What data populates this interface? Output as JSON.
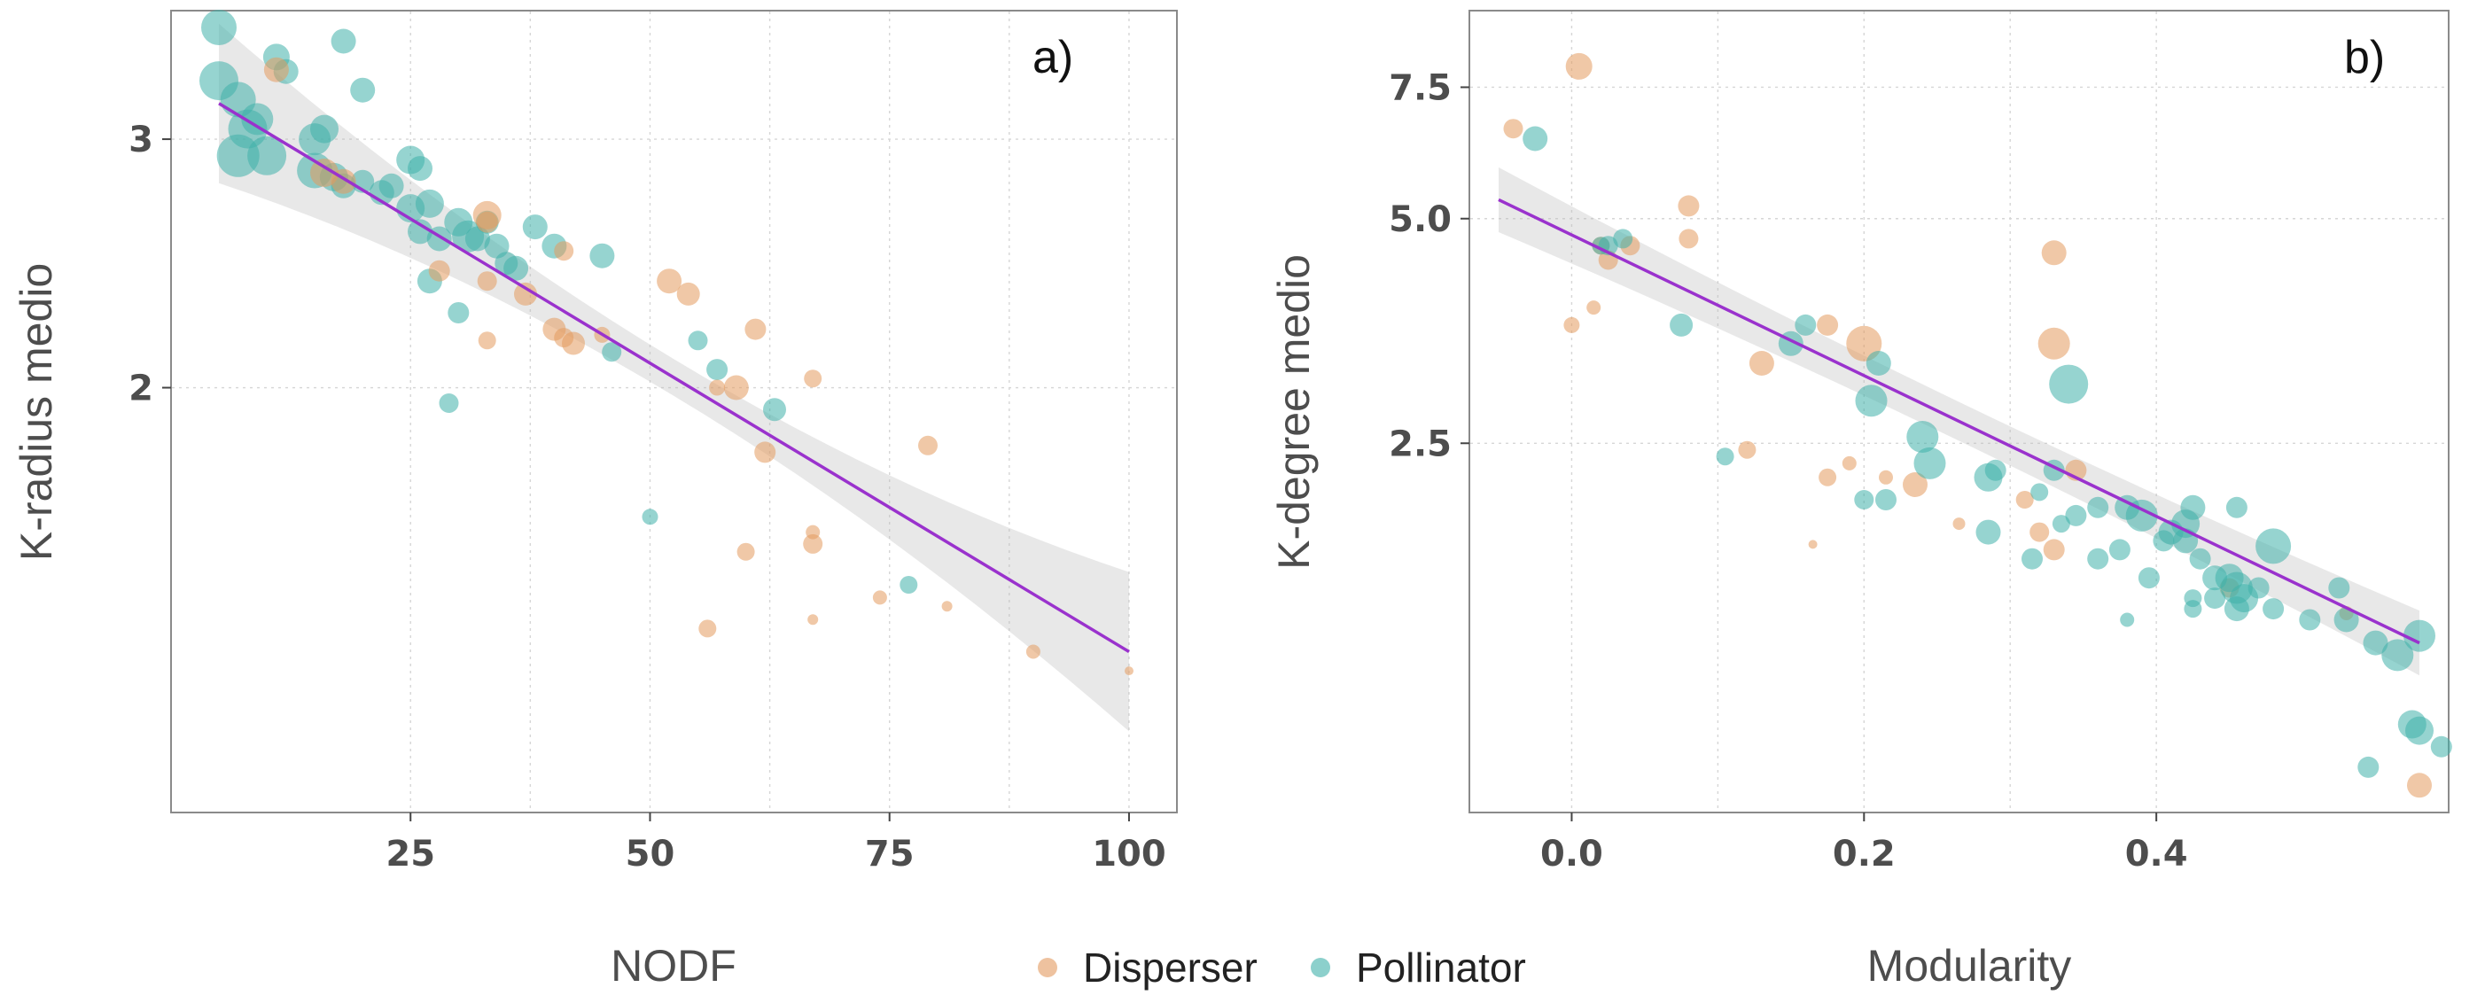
{
  "colors": {
    "disperser": "#E39A5F",
    "pollinator": "#3FB1AA",
    "fit": "#9A32CD",
    "band": "#BDBDBD"
  },
  "legend": {
    "items": [
      {
        "key": "disperser",
        "label": "Disperser"
      },
      {
        "key": "pollinator",
        "label": "Pollinator"
      }
    ],
    "placement": "bottom-center"
  },
  "chart_data": [
    {
      "type": "scatter",
      "panel_label": "a)",
      "xlabel": "NODF",
      "ylabel": "K-radius medio",
      "xlim": [
        0,
        105
      ],
      "ylim": [
        1.0,
        3.7
      ],
      "y_scale": "log",
      "grid": true,
      "xticks": [
        25,
        50,
        75,
        100
      ],
      "xtick_labels": [
        "25",
        "50",
        "75",
        "100"
      ],
      "yticks": [
        2,
        3
      ],
      "ytick_labels": [
        "2",
        "3"
      ],
      "fit": {
        "x": [
          5,
          100
        ],
        "y": [
          3.18,
          1.3
        ],
        "band": [
          0.03,
          0.13
        ]
      },
      "series": [
        {
          "name": "Pollinator",
          "key": "pollinator",
          "points": [
            [
              5,
              3.6,
              20
            ],
            [
              5,
              3.3,
              22
            ],
            [
              7,
              3.2,
              20
            ],
            [
              8,
              3.05,
              22
            ],
            [
              9,
              3.1,
              18
            ],
            [
              7,
              2.92,
              24
            ],
            [
              10,
              2.92,
              22
            ],
            [
              11,
              3.43,
              15
            ],
            [
              12,
              3.35,
              14
            ],
            [
              18,
              3.52,
              14
            ],
            [
              20,
              3.25,
              14
            ],
            [
              15,
              3.0,
              18
            ],
            [
              16,
              3.05,
              16
            ],
            [
              15,
              2.85,
              20
            ],
            [
              17,
              2.82,
              16
            ],
            [
              18,
              2.78,
              14
            ],
            [
              20,
              2.8,
              13
            ],
            [
              22,
              2.75,
              14
            ],
            [
              23,
              2.78,
              14
            ],
            [
              25,
              2.9,
              16
            ],
            [
              26,
              2.86,
              14
            ],
            [
              25,
              2.68,
              16
            ],
            [
              27,
              2.7,
              16
            ],
            [
              26,
              2.58,
              14
            ],
            [
              28,
              2.55,
              14
            ],
            [
              30,
              2.62,
              16
            ],
            [
              31,
              2.56,
              18
            ],
            [
              32,
              2.55,
              14
            ],
            [
              33,
              2.62,
              13
            ],
            [
              34,
              2.52,
              14
            ],
            [
              35,
              2.45,
              13
            ],
            [
              36,
              2.43,
              14
            ],
            [
              38,
              2.6,
              14
            ],
            [
              40,
              2.52,
              14
            ],
            [
              45,
              2.48,
              14
            ],
            [
              27,
              2.38,
              14
            ],
            [
              30,
              2.26,
              12
            ],
            [
              29,
              1.95,
              11
            ],
            [
              55,
              2.16,
              11
            ],
            [
              46,
              2.12,
              11
            ],
            [
              57,
              2.06,
              12
            ],
            [
              63,
              1.93,
              13
            ],
            [
              50,
              1.62,
              9
            ],
            [
              77,
              1.45,
              10
            ]
          ]
        },
        {
          "name": "Disperser",
          "key": "disperser",
          "points": [
            [
              11,
              3.36,
              14
            ],
            [
              16,
              2.84,
              16
            ],
            [
              18,
              2.8,
              14
            ],
            [
              33,
              2.65,
              16
            ],
            [
              33,
              2.62,
              12
            ],
            [
              41,
              2.5,
              11
            ],
            [
              28,
              2.42,
              12
            ],
            [
              33,
              2.38,
              11
            ],
            [
              37,
              2.33,
              13
            ],
            [
              52,
              2.38,
              14
            ],
            [
              54,
              2.33,
              13
            ],
            [
              40,
              2.2,
              13
            ],
            [
              41,
              2.17,
              11
            ],
            [
              42,
              2.15,
              13
            ],
            [
              45,
              2.18,
              9
            ],
            [
              33,
              2.16,
              10
            ],
            [
              61,
              2.2,
              12
            ],
            [
              57,
              2.0,
              9
            ],
            [
              59,
              2.0,
              14
            ],
            [
              67,
              2.03,
              10
            ],
            [
              62,
              1.8,
              12
            ],
            [
              79,
              1.82,
              11
            ],
            [
              67,
              1.58,
              8
            ],
            [
              67,
              1.55,
              11
            ],
            [
              60,
              1.53,
              10
            ],
            [
              56,
              1.35,
              10
            ],
            [
              74,
              1.42,
              8
            ],
            [
              81,
              1.4,
              6
            ],
            [
              67,
              1.37,
              6
            ],
            [
              90,
              1.3,
              8
            ],
            [
              100,
              1.26,
              5
            ]
          ]
        }
      ]
    },
    {
      "type": "scatter",
      "panel_label": "b)",
      "xlabel": "Modularity",
      "ylabel": "K-degree medio",
      "xlim": [
        -0.07,
        0.6
      ],
      "ylim": [
        0.8,
        9.5
      ],
      "y_scale": "log",
      "grid": true,
      "xticks": [
        0.0,
        0.2,
        0.4
      ],
      "xtick_labels": [
        "0.0",
        "0.2",
        "0.4"
      ],
      "yticks": [
        2.5,
        5.0,
        7.5
      ],
      "ytick_labels": [
        "2.5",
        "5.0",
        "7.5"
      ],
      "fit": {
        "x": [
          -0.05,
          0.58
        ],
        "y": [
          5.3,
          1.35
        ],
        "band": [
          0.06,
          0.1
        ]
      },
      "series": [
        {
          "name": "Disperser",
          "key": "disperser",
          "points": [
            [
              0.005,
              8.0,
              15
            ],
            [
              -0.04,
              6.6,
              11
            ],
            [
              0.08,
              5.2,
              12
            ],
            [
              0.08,
              4.7,
              11
            ],
            [
              0.025,
              4.4,
              11
            ],
            [
              0.04,
              4.6,
              11
            ],
            [
              0.02,
              4.6,
              10
            ],
            [
              0.0,
              3.6,
              9
            ],
            [
              0.015,
              3.8,
              8
            ],
            [
              0.33,
              4.5,
              14
            ],
            [
              0.33,
              3.4,
              18
            ],
            [
              0.2,
              3.4,
              20
            ],
            [
              0.13,
              3.2,
              14
            ],
            [
              0.175,
              3.6,
              12
            ],
            [
              0.12,
              2.45,
              10
            ],
            [
              0.175,
              2.25,
              10
            ],
            [
              0.19,
              2.35,
              8
            ],
            [
              0.215,
              2.25,
              8
            ],
            [
              0.235,
              2.2,
              14
            ],
            [
              0.31,
              2.1,
              10
            ],
            [
              0.345,
              2.3,
              12
            ],
            [
              0.32,
              1.9,
              11
            ],
            [
              0.33,
              1.8,
              12
            ],
            [
              0.265,
              1.95,
              7
            ],
            [
              0.165,
              1.83,
              5
            ],
            [
              0.45,
              1.6,
              11
            ],
            [
              0.53,
              1.48,
              8
            ],
            [
              0.58,
              0.87,
              14
            ]
          ]
        },
        {
          "name": "Pollinator",
          "key": "pollinator",
          "points": [
            [
              -0.025,
              6.4,
              14
            ],
            [
              0.025,
              4.6,
              11
            ],
            [
              0.035,
              4.7,
              11
            ],
            [
              0.02,
              4.6,
              10
            ],
            [
              0.075,
              3.6,
              13
            ],
            [
              0.15,
              3.4,
              14
            ],
            [
              0.16,
              3.6,
              12
            ],
            [
              0.21,
              3.2,
              14
            ],
            [
              0.205,
              2.85,
              18
            ],
            [
              0.24,
              2.55,
              18
            ],
            [
              0.245,
              2.35,
              18
            ],
            [
              0.2,
              2.1,
              11
            ],
            [
              0.215,
              2.1,
              12
            ],
            [
              0.105,
              2.4,
              10
            ],
            [
              0.285,
              2.25,
              16
            ],
            [
              0.29,
              2.3,
              12
            ],
            [
              0.33,
              2.3,
              12
            ],
            [
              0.34,
              3.0,
              22
            ],
            [
              0.32,
              2.15,
              10
            ],
            [
              0.345,
              2.0,
              12
            ],
            [
              0.36,
              2.05,
              12
            ],
            [
              0.38,
              2.05,
              14
            ],
            [
              0.39,
              2.0,
              18
            ],
            [
              0.285,
              1.9,
              14
            ],
            [
              0.335,
              1.95,
              10
            ],
            [
              0.375,
              1.8,
              12
            ],
            [
              0.405,
              1.85,
              12
            ],
            [
              0.41,
              1.9,
              14
            ],
            [
              0.42,
              1.95,
              16
            ],
            [
              0.425,
              2.05,
              14
            ],
            [
              0.42,
              1.85,
              14
            ],
            [
              0.43,
              1.75,
              12
            ],
            [
              0.44,
              1.65,
              14
            ],
            [
              0.45,
              1.65,
              16
            ],
            [
              0.455,
              1.6,
              18
            ],
            [
              0.44,
              1.55,
              12
            ],
            [
              0.455,
              1.5,
              14
            ],
            [
              0.46,
              1.55,
              16
            ],
            [
              0.48,
              1.82,
              20
            ],
            [
              0.47,
              1.6,
              12
            ],
            [
              0.48,
              1.5,
              12
            ],
            [
              0.425,
              1.55,
              10
            ],
            [
              0.36,
              1.75,
              12
            ],
            [
              0.315,
              1.75,
              12
            ],
            [
              0.395,
              1.65,
              12
            ],
            [
              0.425,
              1.5,
              10
            ],
            [
              0.505,
              1.45,
              12
            ],
            [
              0.53,
              1.45,
              14
            ],
            [
              0.525,
              1.6,
              12
            ],
            [
              0.55,
              1.35,
              14
            ],
            [
              0.565,
              1.3,
              18
            ],
            [
              0.58,
              1.38,
              18
            ],
            [
              0.575,
              1.05,
              16
            ],
            [
              0.58,
              1.03,
              16
            ],
            [
              0.595,
              0.98,
              12
            ],
            [
              0.545,
              0.92,
              12
            ],
            [
              0.38,
              1.45,
              8
            ],
            [
              0.455,
              2.05,
              12
            ]
          ]
        }
      ]
    }
  ]
}
